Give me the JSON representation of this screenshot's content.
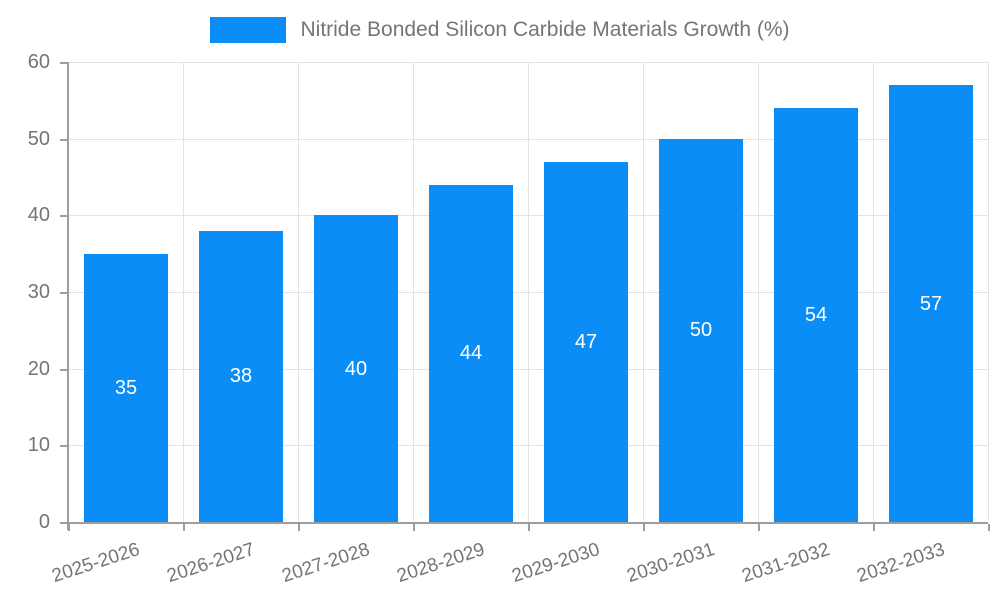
{
  "chart_data": {
    "type": "bar",
    "title": "Nitride Bonded Silicon Carbide Materials Growth (%)",
    "categories": [
      "2025-2026",
      "2026-2027",
      "2027-2028",
      "2028-2029",
      "2029-2030",
      "2030-2031",
      "2031-2032",
      "2032-2033"
    ],
    "values": [
      35,
      38,
      40,
      44,
      47,
      50,
      54,
      57
    ],
    "xlabel": "",
    "ylabel": "",
    "ylim": [
      0,
      60
    ],
    "yticks": [
      0,
      10,
      20,
      30,
      40,
      50,
      60
    ],
    "grid": true,
    "legend_position": "top-center",
    "value_labels": "centered-inside-bars-white",
    "colors": {
      "bar": "#0b8df8",
      "value_label": "#ffffff",
      "axis_text": "#757575",
      "axis_line": "#9e9e9e",
      "gridline": "#e3e3e3",
      "background": "#ffffff"
    }
  }
}
